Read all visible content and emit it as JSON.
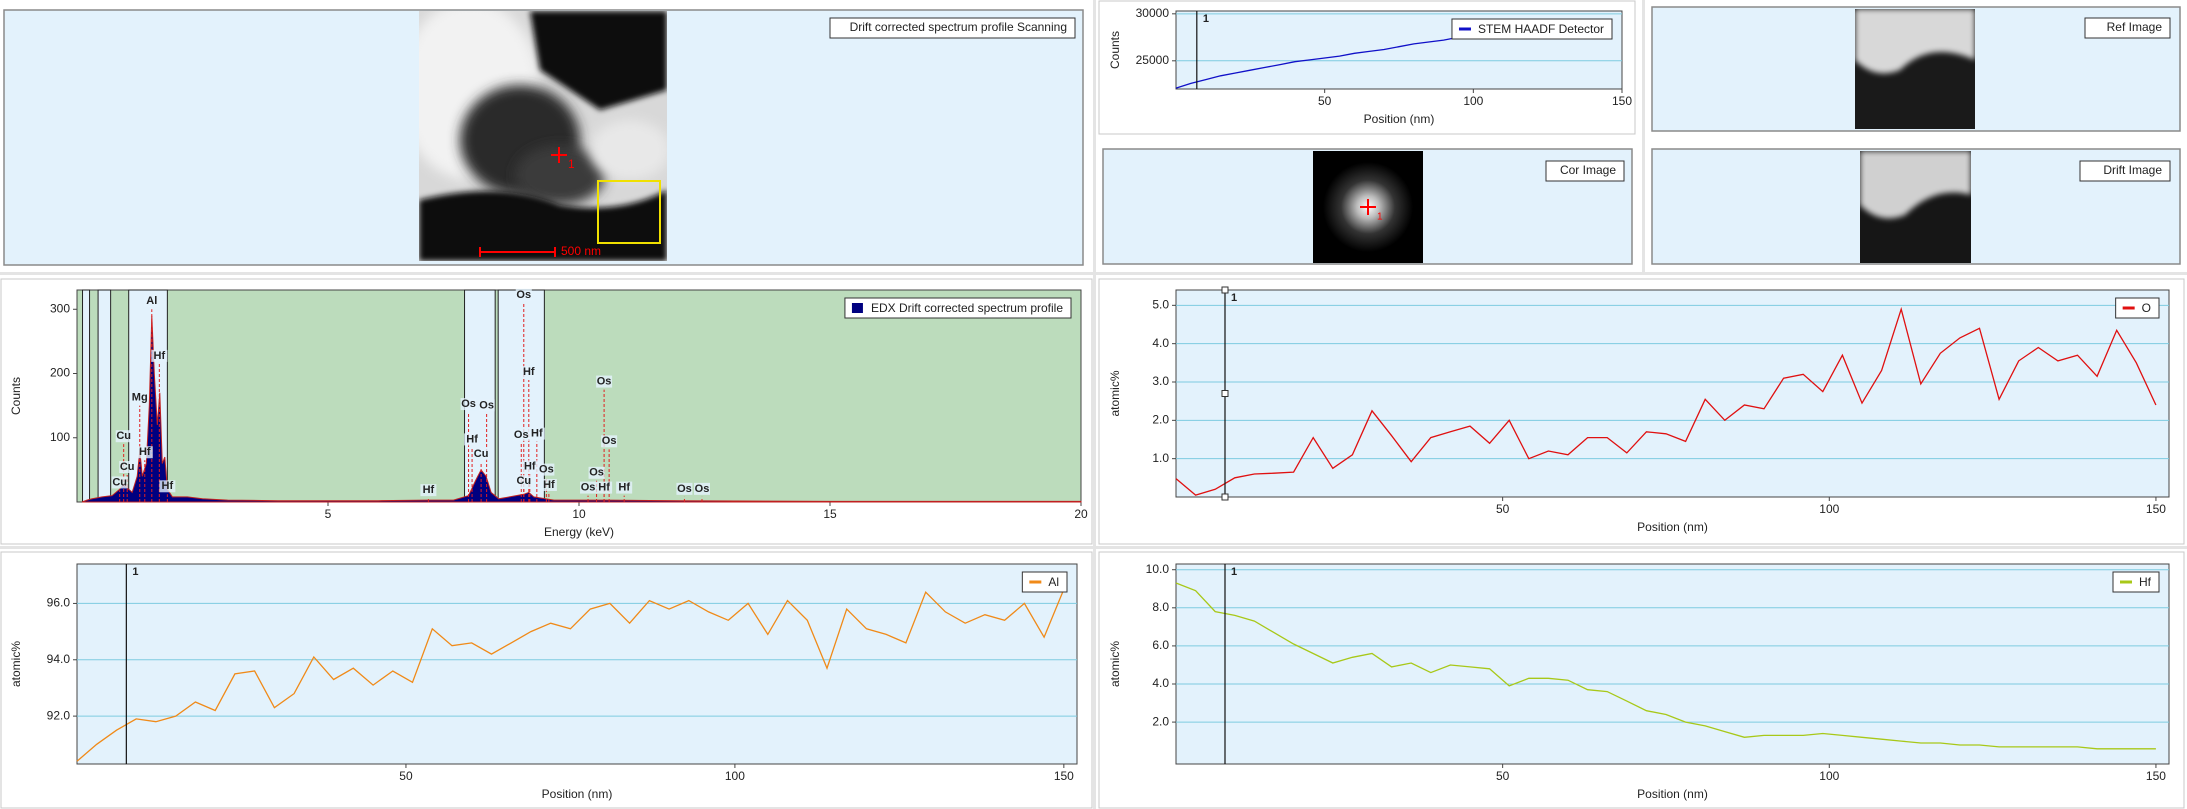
{
  "image_panels": [
    {
      "label": "Drift corrected spectrum profile Scanning",
      "marker": "1",
      "scale_bar": "500 nm"
    },
    {
      "label": "Ref Image"
    },
    {
      "label": "Cor Image",
      "marker": "1"
    },
    {
      "label": "Drift Image"
    }
  ],
  "chart_data": [
    {
      "type": "line",
      "x_label": "Position (nm)",
      "y_label": "Counts",
      "xlim": [
        0,
        150
      ],
      "ylim": [
        22000,
        30300
      ],
      "xticks": [
        50,
        100,
        150
      ],
      "yticks": [
        25000,
        30000
      ],
      "grid": true,
      "legend": "upper right",
      "cursor": {
        "x": 7,
        "label": "1"
      },
      "series": [
        {
          "name": "STEM HAADF Detector",
          "color": "#1010c8",
          "x": [
            0,
            5,
            10,
            15,
            20,
            25,
            30,
            35,
            40,
            45,
            50,
            55,
            60,
            65,
            70,
            75,
            80,
            85,
            90,
            95,
            100,
            105,
            110,
            115,
            120,
            125,
            130,
            135,
            140,
            145
          ],
          "values": [
            22100,
            22600,
            23000,
            23400,
            23700,
            24000,
            24300,
            24600,
            24900,
            25100,
            25300,
            25500,
            25800,
            26000,
            26200,
            26500,
            26800,
            27000,
            27200,
            27500,
            27900,
            28200,
            28500,
            28700,
            28900,
            29000,
            29100,
            29000,
            29100,
            29100
          ]
        }
      ]
    },
    {
      "type": "spectrum",
      "x_label": "Energy (keV)",
      "y_label": "Counts",
      "xlim": [
        0,
        20
      ],
      "ylim": [
        0,
        330
      ],
      "xticks": [
        5,
        10,
        15,
        20
      ],
      "yticks": [
        100,
        200,
        300
      ],
      "grid": false,
      "legend": "upper right",
      "plot_background": "#bcdcbc",
      "windows": [
        [
          0.11,
          0.25
        ],
        [
          0.42,
          0.67
        ],
        [
          1.03,
          1.8
        ],
        [
          7.72,
          8.33
        ],
        [
          8.39,
          9.31
        ]
      ],
      "series": [
        {
          "name": "EDX Drift corrected spectrum profile",
          "color": "#000080",
          "x": [
            0.1,
            0.2,
            0.3,
            0.5,
            0.7,
            0.85,
            0.93,
            1.0,
            1.1,
            1.2,
            1.25,
            1.3,
            1.38,
            1.44,
            1.49,
            1.54,
            1.6,
            1.65,
            1.7,
            1.75,
            1.8,
            1.9,
            2.2,
            2.5,
            3.0,
            4.0,
            5.0,
            6.0,
            7.0,
            7.5,
            7.8,
            7.95,
            8.05,
            8.15,
            8.25,
            8.4,
            8.9,
            9.0,
            9.1,
            9.5,
            10.5,
            12.0,
            15.0,
            20.0
          ],
          "values": [
            0,
            3,
            5,
            8,
            10,
            20,
            28,
            22,
            15,
            40,
            80,
            40,
            60,
            150,
            290,
            200,
            120,
            170,
            60,
            70,
            20,
            8,
            8,
            5,
            3,
            2,
            2,
            2,
            3,
            3,
            10,
            35,
            50,
            40,
            15,
            5,
            12,
            15,
            8,
            3,
            3,
            2,
            1,
            1
          ]
        }
      ],
      "annotations": [
        {
          "text": "Al",
          "x": 1.49,
          "y": 300
        },
        {
          "text": "Hf",
          "x": 1.64,
          "y": 215
        },
        {
          "text": "Mg",
          "x": 1.25,
          "y": 150
        },
        {
          "text": "Hf",
          "x": 1.35,
          "y": 65
        },
        {
          "text": "Cu",
          "x": 0.93,
          "y": 90
        },
        {
          "text": "Cu",
          "x": 1.0,
          "y": 42
        },
        {
          "text": "Cu",
          "x": 0.85,
          "y": 18
        },
        {
          "text": "Hf",
          "x": 1.8,
          "y": 12
        },
        {
          "text": "Hf",
          "x": 7.0,
          "y": 6
        },
        {
          "text": "Os",
          "x": 7.8,
          "y": 140
        },
        {
          "text": "Hf",
          "x": 7.87,
          "y": 85
        },
        {
          "text": "Os",
          "x": 8.16,
          "y": 138
        },
        {
          "text": "Cu",
          "x": 8.05,
          "y": 62
        },
        {
          "text": "Os",
          "x": 8.9,
          "y": 310
        },
        {
          "text": "Hf",
          "x": 9.0,
          "y": 190
        },
        {
          "text": "Os",
          "x": 8.85,
          "y": 92
        },
        {
          "text": "Hf",
          "x": 9.16,
          "y": 94
        },
        {
          "text": "Hf",
          "x": 9.02,
          "y": 43
        },
        {
          "text": "Cu",
          "x": 8.9,
          "y": 20
        },
        {
          "text": "Os",
          "x": 9.35,
          "y": 38
        },
        {
          "text": "Hf",
          "x": 9.4,
          "y": 14
        },
        {
          "text": "Os",
          "x": 10.5,
          "y": 175
        },
        {
          "text": "Os",
          "x": 10.6,
          "y": 82
        },
        {
          "text": "Os",
          "x": 10.35,
          "y": 33
        },
        {
          "text": "Os",
          "x": 10.18,
          "y": 10
        },
        {
          "text": "Hf",
          "x": 10.5,
          "y": 10
        },
        {
          "text": "Hf",
          "x": 10.9,
          "y": 10
        },
        {
          "text": "Os",
          "x": 12.1,
          "y": 8
        },
        {
          "text": "Os",
          "x": 12.45,
          "y": 8
        }
      ]
    },
    {
      "type": "line",
      "x_label": "Position (nm)",
      "y_label": "atomic%",
      "xlim": [
        0,
        152
      ],
      "ylim": [
        0,
        5.4
      ],
      "xticks": [
        50,
        100,
        150
      ],
      "yticks": [
        {
          "value": 1,
          "label": "1.0"
        },
        {
          "value": 2,
          "label": "2.0"
        },
        {
          "value": 3,
          "label": "3.0"
        },
        {
          "value": 4,
          "label": "4.0"
        },
        {
          "value": 5,
          "label": "5.0"
        }
      ],
      "grid": true,
      "legend": "upper right",
      "cursor": {
        "x": 7.5,
        "label": "1"
      },
      "series": [
        {
          "name": "O",
          "color": "#e01010",
          "x": [
            0,
            3,
            6,
            9,
            12,
            15,
            18,
            21,
            24,
            27,
            30,
            33,
            36,
            39,
            42,
            45,
            48,
            51,
            54,
            57,
            60,
            63,
            66,
            69,
            72,
            75,
            78,
            81,
            84,
            87,
            90,
            93,
            96,
            99,
            102,
            105,
            108,
            111,
            114,
            117,
            120,
            123,
            126,
            129,
            132,
            135,
            138,
            141,
            144,
            147,
            150
          ],
          "values": [
            0.48,
            0.05,
            0.2,
            0.5,
            0.6,
            0.62,
            0.65,
            1.55,
            0.75,
            1.1,
            2.25,
            1.6,
            0.92,
            1.55,
            1.7,
            1.85,
            1.4,
            2.0,
            1.0,
            1.2,
            1.1,
            1.55,
            1.55,
            1.15,
            1.7,
            1.65,
            1.45,
            2.55,
            2.0,
            2.4,
            2.3,
            3.1,
            3.2,
            2.75,
            3.7,
            2.45,
            3.3,
            4.9,
            2.95,
            3.75,
            4.15,
            4.4,
            2.55,
            3.55,
            3.9,
            3.55,
            3.7,
            3.15,
            4.35,
            3.5,
            2.4
          ]
        }
      ]
    },
    {
      "type": "line",
      "x_label": "Position (nm)",
      "y_label": "atomic%",
      "xlim": [
        0,
        152
      ],
      "ylim": [
        90.3,
        97.4
      ],
      "xticks": [
        50,
        100,
        150
      ],
      "yticks": [
        {
          "value": 92,
          "label": "92.0"
        },
        {
          "value": 94,
          "label": "94.0"
        },
        {
          "value": 96,
          "label": "96.0"
        }
      ],
      "grid": true,
      "legend": "upper right",
      "cursor": {
        "x": 7.5,
        "label": "1"
      },
      "series": [
        {
          "name": "Al",
          "color": "#f08a18",
          "x": [
            0,
            3,
            6,
            9,
            12,
            15,
            18,
            21,
            24,
            27,
            30,
            33,
            36,
            39,
            42,
            45,
            48,
            51,
            54,
            57,
            60,
            63,
            66,
            69,
            72,
            75,
            78,
            81,
            84,
            87,
            90,
            93,
            96,
            99,
            102,
            105,
            108,
            111,
            114,
            117,
            120,
            123,
            126,
            129,
            132,
            135,
            138,
            141,
            144,
            147,
            150
          ],
          "values": [
            90.4,
            91.0,
            91.5,
            91.9,
            91.8,
            92.0,
            92.5,
            92.2,
            93.5,
            93.6,
            92.3,
            92.8,
            94.1,
            93.3,
            93.7,
            93.1,
            93.6,
            93.2,
            95.1,
            94.5,
            94.6,
            94.2,
            94.6,
            95.0,
            95.3,
            95.1,
            95.8,
            96.0,
            95.3,
            96.1,
            95.8,
            96.1,
            95.7,
            95.4,
            96.0,
            94.9,
            96.1,
            95.4,
            93.7,
            95.8,
            95.1,
            94.9,
            94.6,
            96.4,
            95.7,
            95.3,
            95.6,
            95.4,
            96.0,
            94.8,
            96.5
          ]
        }
      ]
    },
    {
      "type": "line",
      "x_label": "Position (nm)",
      "y_label": "atomic%",
      "xlim": [
        0,
        152
      ],
      "ylim": [
        -0.2,
        10.3
      ],
      "xticks": [
        50,
        100,
        150
      ],
      "yticks": [
        {
          "value": 2,
          "label": "2.0"
        },
        {
          "value": 4,
          "label": "4.0"
        },
        {
          "value": 6,
          "label": "6.0"
        },
        {
          "value": 8,
          "label": "8.0"
        },
        {
          "value": 10,
          "label": "10.0"
        }
      ],
      "grid": true,
      "legend": "upper right",
      "cursor": {
        "x": 7.5,
        "label": "1"
      },
      "series": [
        {
          "name": "Hf",
          "color": "#a8c818",
          "x": [
            0,
            3,
            6,
            9,
            12,
            15,
            18,
            21,
            24,
            27,
            30,
            33,
            36,
            39,
            42,
            45,
            48,
            51,
            54,
            57,
            60,
            63,
            66,
            69,
            72,
            75,
            78,
            81,
            84,
            87,
            90,
            93,
            96,
            99,
            102,
            105,
            108,
            111,
            114,
            117,
            120,
            123,
            126,
            129,
            132,
            135,
            138,
            141,
            144,
            147,
            150
          ],
          "values": [
            9.3,
            8.9,
            7.8,
            7.6,
            7.3,
            6.7,
            6.1,
            5.6,
            5.1,
            5.4,
            5.6,
            4.9,
            5.1,
            4.6,
            5.0,
            4.9,
            4.8,
            3.9,
            4.3,
            4.3,
            4.2,
            3.7,
            3.6,
            3.1,
            2.6,
            2.4,
            2.0,
            1.8,
            1.5,
            1.2,
            1.3,
            1.3,
            1.3,
            1.4,
            1.3,
            1.2,
            1.1,
            1.0,
            0.9,
            0.9,
            0.8,
            0.8,
            0.7,
            0.7,
            0.7,
            0.7,
            0.7,
            0.6,
            0.6,
            0.6,
            0.6
          ]
        }
      ]
    }
  ]
}
